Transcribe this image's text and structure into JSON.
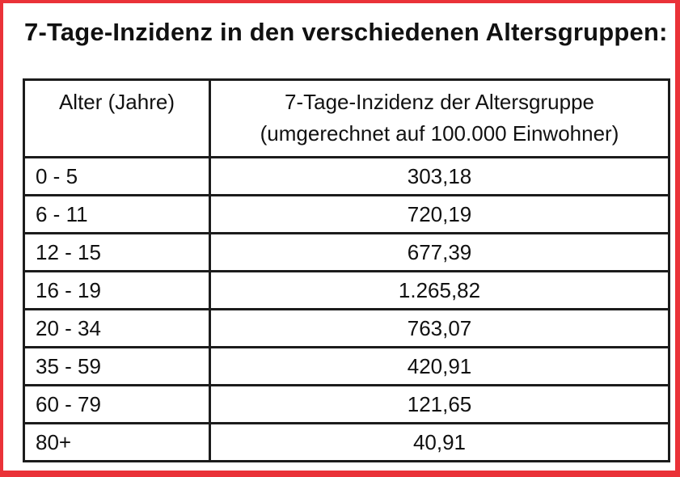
{
  "page": {
    "title": "7-Tage-Inzidenz in den verschiedenen Altersgruppen:",
    "frame_border_color": "#ea3238",
    "table_border_color": "#1c1c1c",
    "background_color": "#ffffff"
  },
  "table": {
    "header": {
      "col1": "Alter (Jahre)",
      "col2_line1": "7-Tage-Inzidenz der Altersgruppe",
      "col2_line2": "(umgerechnet auf 100.000 Einwohner)"
    },
    "rows": [
      {
        "age": "0 - 5",
        "incidence": "303,18"
      },
      {
        "age": "6 - 11",
        "incidence": "720,19"
      },
      {
        "age": "12 - 15",
        "incidence": "677,39"
      },
      {
        "age": "16 - 19",
        "incidence": "1.265,82"
      },
      {
        "age": "20 - 34",
        "incidence": "763,07"
      },
      {
        "age": "35 - 59",
        "incidence": "420,91"
      },
      {
        "age": "60 - 79",
        "incidence": "121,65"
      },
      {
        "age": "80+",
        "incidence": "40,91"
      }
    ]
  },
  "chart_data": {
    "type": "table",
    "title": "7-Tage-Inzidenz in den verschiedenen Altersgruppen:",
    "columns": [
      "Alter (Jahre)",
      "7-Tage-Inzidenz der Altersgruppe (umgerechnet auf 100.000 Einwohner)"
    ],
    "categories": [
      "0 - 5",
      "6 - 11",
      "12 - 15",
      "16 - 19",
      "20 - 34",
      "35 - 59",
      "60 - 79",
      "80+"
    ],
    "values": [
      303.18,
      720.19,
      677.39,
      1265.82,
      763.07,
      420.91,
      121.65,
      40.91
    ],
    "value_format": "de-DE decimal comma, dot thousands separator"
  }
}
